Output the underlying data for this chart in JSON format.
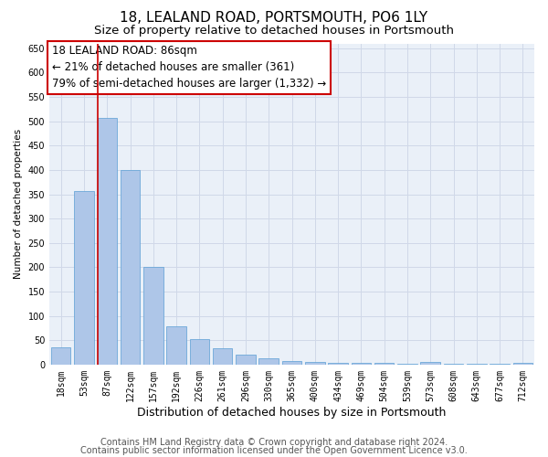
{
  "title": "18, LEALAND ROAD, PORTSMOUTH, PO6 1LY",
  "subtitle": "Size of property relative to detached houses in Portsmouth",
  "xlabel": "Distribution of detached houses by size in Portsmouth",
  "ylabel": "Number of detached properties",
  "categories": [
    "18sqm",
    "53sqm",
    "87sqm",
    "122sqm",
    "157sqm",
    "192sqm",
    "226sqm",
    "261sqm",
    "296sqm",
    "330sqm",
    "365sqm",
    "400sqm",
    "434sqm",
    "469sqm",
    "504sqm",
    "539sqm",
    "573sqm",
    "608sqm",
    "643sqm",
    "677sqm",
    "712sqm"
  ],
  "values": [
    35,
    357,
    507,
    400,
    200,
    78,
    53,
    33,
    20,
    12,
    8,
    5,
    3,
    3,
    3,
    1,
    5,
    1,
    1,
    1,
    3
  ],
  "bar_color": "#aec6e8",
  "bar_edge_color": "#5a9fd4",
  "red_line_x": 2,
  "annotation_text_line1": "18 LEALAND ROAD: 86sqm",
  "annotation_text_line2": "← 21% of detached houses are smaller (361)",
  "annotation_text_line3": "79% of semi-detached houses are larger (1,332) →",
  "annotation_box_color": "#ffffff",
  "annotation_box_edge_color": "#cc0000",
  "ylim": [
    0,
    660
  ],
  "yticks": [
    0,
    50,
    100,
    150,
    200,
    250,
    300,
    350,
    400,
    450,
    500,
    550,
    600,
    650
  ],
  "grid_color": "#d0d8e8",
  "background_color": "#eaf0f8",
  "footer_line1": "Contains HM Land Registry data © Crown copyright and database right 2024.",
  "footer_line2": "Contains public sector information licensed under the Open Government Licence v3.0.",
  "title_fontsize": 11,
  "subtitle_fontsize": 9.5,
  "xlabel_fontsize": 9,
  "ylabel_fontsize": 7.5,
  "tick_fontsize": 7,
  "annotation_fontsize": 8.5,
  "footer_fontsize": 7
}
